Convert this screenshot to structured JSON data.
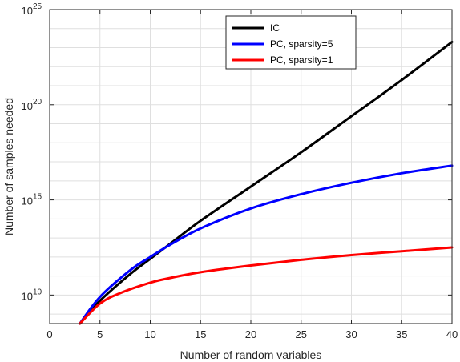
{
  "chart_data": {
    "type": "line",
    "title": "",
    "xlabel": "Number of random variables",
    "ylabel": "Number of samples needed",
    "xlim": [
      0,
      40
    ],
    "ylim_exp": [
      8.5,
      25
    ],
    "yscale": "log",
    "x_ticks": [
      "0",
      "5",
      "10",
      "15",
      "20",
      "25",
      "30",
      "35",
      "40"
    ],
    "y_ticks": [
      {
        "base": "10",
        "exp": "10"
      },
      {
        "base": "10",
        "exp": "15"
      },
      {
        "base": "10",
        "exp": "20"
      },
      {
        "base": "10",
        "exp": "25"
      }
    ],
    "grid": true,
    "legend_position": "top-right",
    "series": [
      {
        "name": "IC",
        "color": "#000000",
        "x": [
          3,
          5,
          8,
          10,
          12,
          15,
          20,
          25,
          30,
          35,
          40
        ],
        "log10_y": [
          8.5,
          9.7,
          11.1,
          11.9,
          12.7,
          13.9,
          15.7,
          17.5,
          19.4,
          21.3,
          23.3
        ]
      },
      {
        "name": "PC, sparsity=5",
        "color": "#0000ff",
        "x": [
          3,
          5,
          8,
          10,
          12,
          15,
          20,
          25,
          30,
          35,
          40
        ],
        "log10_y": [
          8.5,
          9.9,
          11.3,
          12.0,
          12.65,
          13.5,
          14.55,
          15.3,
          15.9,
          16.4,
          16.8
        ]
      },
      {
        "name": "PC, sparsity=1",
        "color": "#ff0000",
        "x": [
          3,
          5,
          7,
          10,
          12,
          15,
          20,
          25,
          30,
          35,
          40
        ],
        "log10_y": [
          8.5,
          9.55,
          10.1,
          10.65,
          10.9,
          11.2,
          11.55,
          11.85,
          12.1,
          12.3,
          12.5
        ]
      }
    ]
  }
}
